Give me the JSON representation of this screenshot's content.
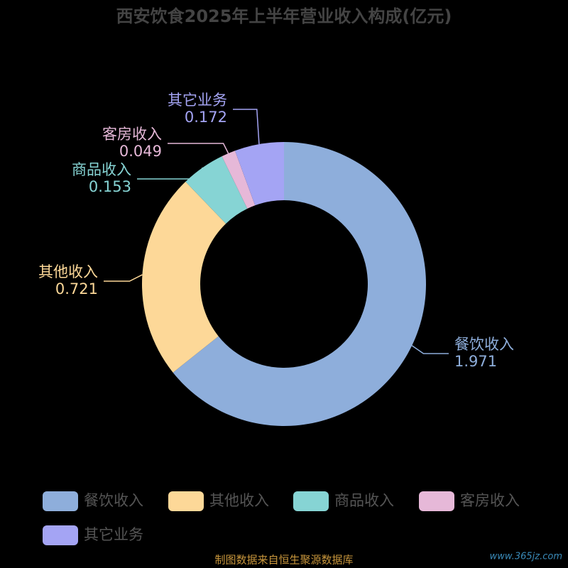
{
  "chart_data": {
    "type": "donut",
    "title": "西安饮食2025年上半年营业收入构成(亿元)",
    "categories": [
      "餐饮收入",
      "其他收入",
      "商品收入",
      "客房收入",
      "其它业务"
    ],
    "values": [
      1.971,
      0.721,
      0.153,
      0.049,
      0.172
    ],
    "colors": [
      "#8eaedb",
      "#fdd898",
      "#86d4d4",
      "#e6b8d8",
      "#a4a4f4"
    ],
    "legend": "bottom",
    "source": "制图数据来自恒生聚源数据库",
    "watermark": "www.365jz.com"
  }
}
